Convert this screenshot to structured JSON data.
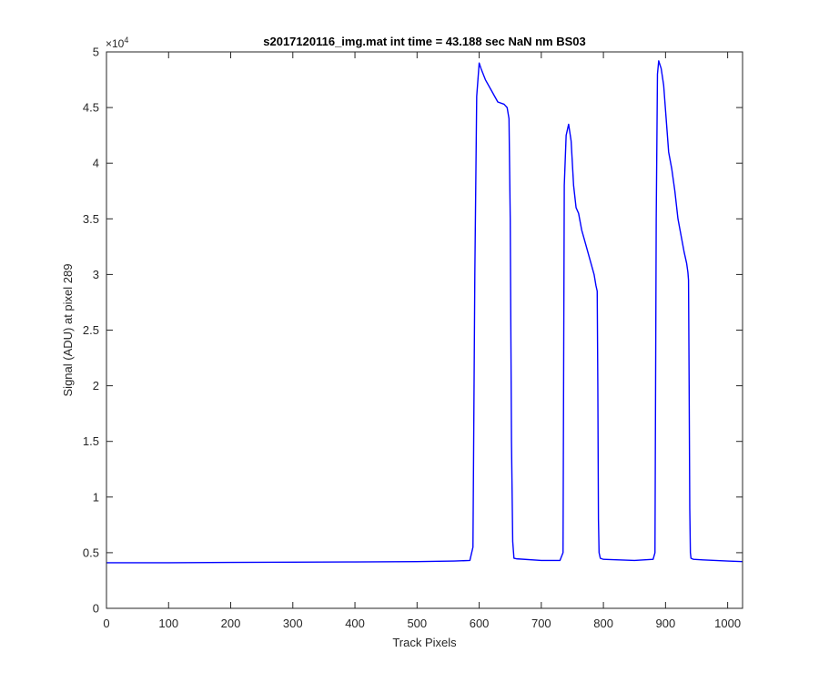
{
  "chart_data": {
    "type": "line",
    "title": "s2017120116_img.mat int time = 43.188 sec  NaN nm BS03",
    "xlabel": "Track Pixels",
    "ylabel": "Signal (ADU) at pixel 289",
    "xlim": [
      0,
      1024
    ],
    "ylim": [
      0,
      50000
    ],
    "x_ticks": [
      0,
      100,
      200,
      300,
      400,
      500,
      600,
      700,
      800,
      900,
      1000
    ],
    "y_ticks": [
      0,
      5000,
      10000,
      15000,
      20000,
      25000,
      30000,
      35000,
      40000,
      45000,
      50000
    ],
    "y_tick_labels": [
      "0",
      "0.5",
      "1",
      "1.5",
      "2",
      "2.5",
      "3",
      "3.5",
      "4",
      "4.5",
      "5"
    ],
    "y_exponent_label": "×10",
    "y_exponent_power": "4",
    "grid": false,
    "line_color": "#0000ff",
    "series": [
      {
        "x": [
          0,
          100,
          200,
          300,
          400,
          500,
          560,
          585,
          590,
          593,
          596,
          600,
          603,
          610,
          620,
          630,
          640,
          645,
          648,
          650,
          652,
          654,
          656,
          660,
          700,
          730,
          735,
          737,
          740,
          744,
          748,
          752,
          756,
          760,
          765,
          770,
          775,
          780,
          785,
          788,
          790,
          791,
          792,
          793,
          795,
          800,
          850,
          880,
          883,
          885,
          887,
          889,
          893,
          897,
          901,
          905,
          910,
          915,
          920,
          925,
          930,
          934,
          936,
          937,
          938,
          939,
          940,
          941,
          943,
          945,
          960,
          980,
          1000,
          1024
        ],
        "y": [
          4100,
          4100,
          4130,
          4150,
          4170,
          4200,
          4250,
          4300,
          5500,
          30000,
          46000,
          49000,
          48500,
          47500,
          46500,
          45500,
          45300,
          45000,
          44000,
          35000,
          15000,
          6000,
          4500,
          4450,
          4300,
          4300,
          5000,
          38000,
          42500,
          43500,
          42000,
          38000,
          36000,
          35500,
          34000,
          33000,
          32000,
          31000,
          30000,
          29000,
          28500,
          20000,
          8000,
          5000,
          4500,
          4400,
          4300,
          4400,
          5000,
          35000,
          48000,
          49200,
          48500,
          47000,
          44000,
          41000,
          39500,
          37500,
          35000,
          33500,
          32000,
          31000,
          30200,
          29500,
          20000,
          9000,
          5000,
          4500,
          4450,
          4400,
          4350,
          4300,
          4250,
          4200
        ]
      }
    ]
  }
}
